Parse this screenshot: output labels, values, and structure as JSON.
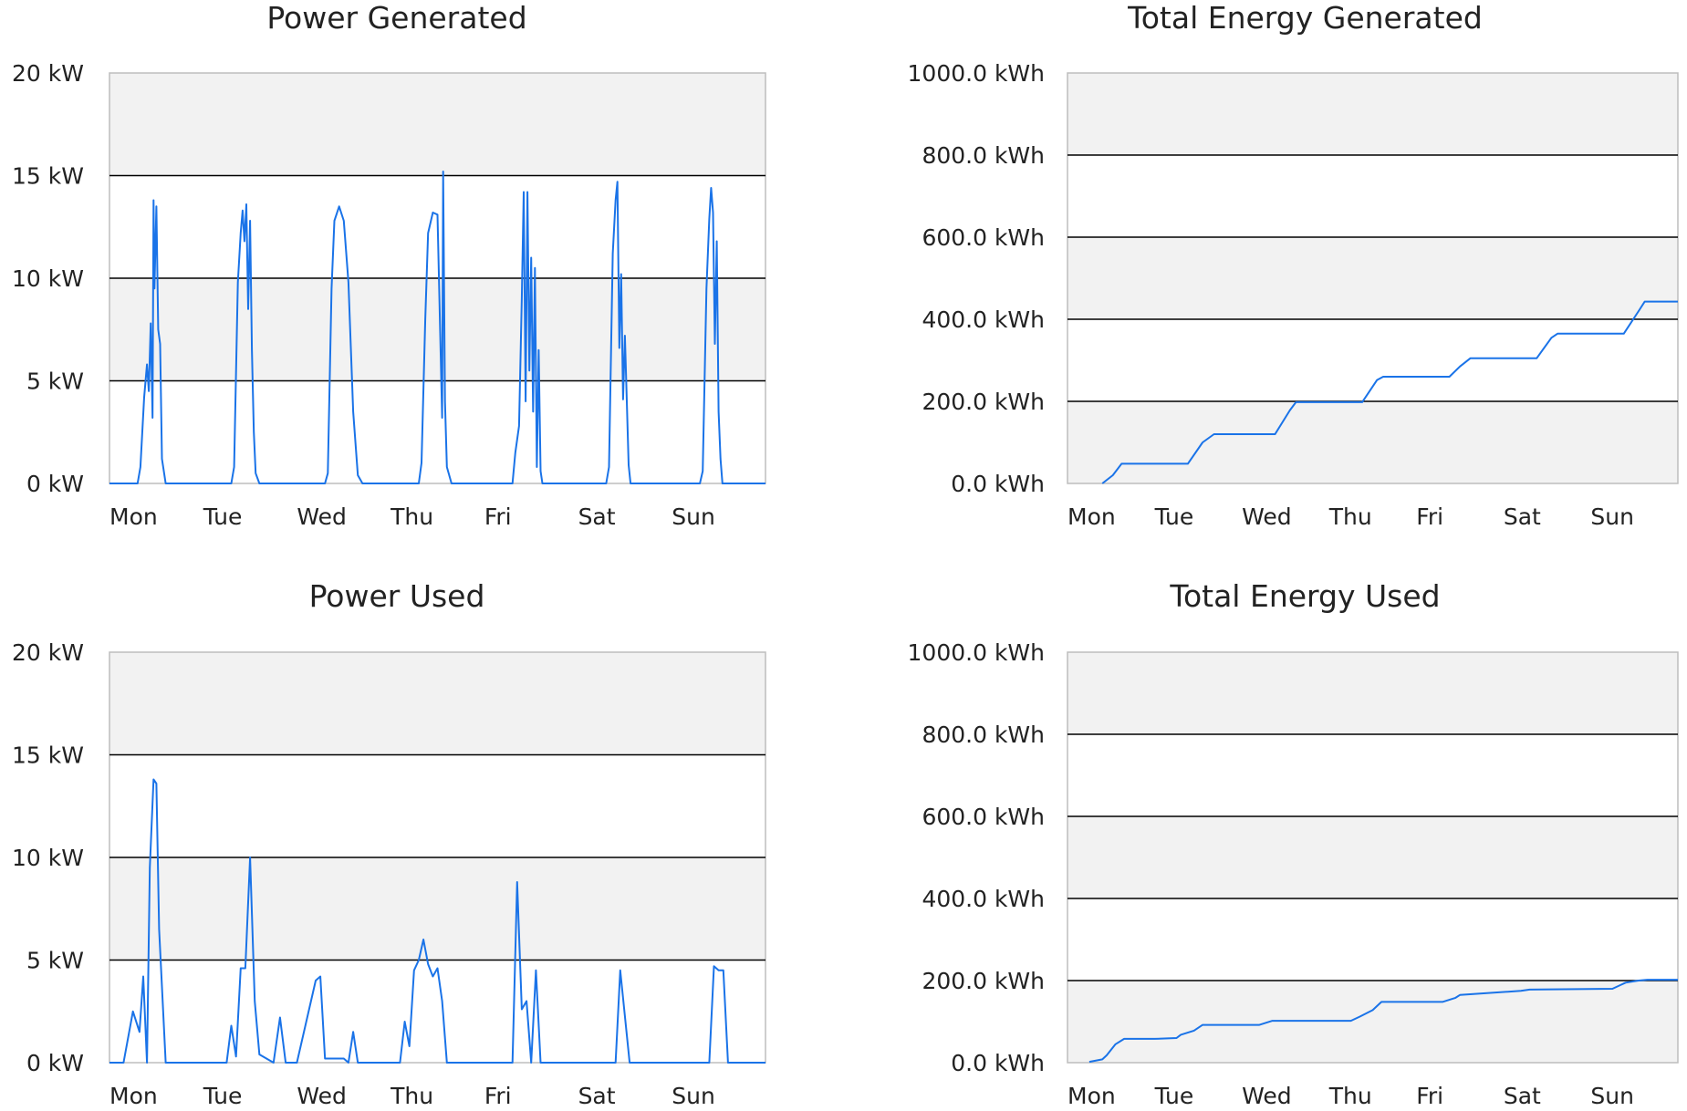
{
  "colors": {
    "line": "#1a73e8",
    "band": "#f2f2f2",
    "grid": "#000000",
    "frame": "#bdbdbd"
  },
  "chart_data": [
    {
      "type": "line",
      "title": "Power Generated",
      "xlabel": "",
      "ylabel": "",
      "ylim": [
        0,
        20
      ],
      "xlim": [
        0,
        7
      ],
      "x_ticks": [
        "Mon",
        "Tue",
        "Wed",
        "Thu",
        "Fri",
        "Sat",
        "Sun"
      ],
      "y_ticks": [
        "0 kW",
        "5 kW",
        "10 kW",
        "15 kW",
        "20 kW"
      ],
      "y_tick_values": [
        0,
        5,
        10,
        15,
        20
      ],
      "grid": true,
      "series": [
        {
          "x": [
            0,
            0.3,
            0.33,
            0.37,
            0.4,
            0.42,
            0.44,
            0.46,
            0.47,
            0.48,
            0.5,
            0.52,
            0.54,
            0.56,
            0.6,
            0.64,
            0.68,
            1.0,
            1.3,
            1.33,
            1.37,
            1.4,
            1.42,
            1.44,
            1.46,
            1.48,
            1.5,
            1.52,
            1.54,
            1.56,
            1.6,
            1.65,
            1.7,
            2.0,
            2.3,
            2.33,
            2.37,
            2.4,
            2.45,
            2.5,
            2.55,
            2.6,
            2.65,
            2.7,
            2.72,
            3.0,
            3.3,
            3.33,
            3.37,
            3.4,
            3.45,
            3.5,
            3.55,
            3.56,
            3.58,
            3.6,
            3.65,
            3.7,
            4.0,
            4.3,
            4.33,
            4.37,
            4.4,
            4.42,
            4.44,
            4.46,
            4.48,
            4.5,
            4.52,
            4.54,
            4.56,
            4.58,
            4.6,
            4.62,
            4.65,
            4.7,
            5.0,
            5.3,
            5.33,
            5.37,
            5.4,
            5.42,
            5.44,
            5.46,
            5.48,
            5.5,
            5.52,
            5.54,
            5.56,
            5.6,
            5.65,
            5.7,
            6.0,
            6.3,
            6.33,
            6.37,
            6.4,
            6.42,
            6.44,
            6.46,
            6.48,
            6.5,
            6.52,
            6.54,
            6.56,
            6.6,
            6.65,
            6.7,
            7.0
          ],
          "y": [
            0,
            0,
            0.8,
            4.2,
            5.8,
            4.5,
            7.8,
            3.2,
            13.8,
            9.5,
            13.5,
            7.5,
            6.8,
            1.2,
            0,
            0,
            0,
            0,
            0,
            0.8,
            9.8,
            12.2,
            13.3,
            11.8,
            13.6,
            8.5,
            12.8,
            6.5,
            2.5,
            0.5,
            0,
            0,
            0,
            0,
            0,
            0.5,
            9.5,
            12.8,
            13.5,
            12.8,
            9.8,
            3.5,
            0.4,
            0,
            0,
            0,
            0,
            1.0,
            8.0,
            12.2,
            13.2,
            13.1,
            3.2,
            15.2,
            4.0,
            0.8,
            0,
            0,
            0,
            0,
            1.5,
            2.8,
            9.0,
            14.2,
            4.0,
            14.2,
            5.5,
            11.0,
            3.5,
            10.5,
            0.8,
            6.5,
            0.6,
            0,
            0,
            0,
            0,
            0,
            0.8,
            11.2,
            13.8,
            14.7,
            6.6,
            10.2,
            4.1,
            7.2,
            4.0,
            0.9,
            0,
            0,
            0,
            0,
            0,
            0,
            0.6,
            9.5,
            12.9,
            14.4,
            13.2,
            6.8,
            11.8,
            3.5,
            1.2,
            0,
            0,
            0,
            0,
            0,
            0
          ]
        }
      ]
    },
    {
      "type": "line",
      "title": "Total Energy Generated",
      "xlabel": "",
      "ylabel": "",
      "ylim": [
        0,
        1000
      ],
      "xlim": [
        0,
        7
      ],
      "x_ticks": [
        "Mon",
        "Tue",
        "Wed",
        "Thu",
        "Fri",
        "Sat",
        "Sun"
      ],
      "y_ticks": [
        "0.0 kWh",
        "200.0 kWh",
        "400.0 kWh",
        "600.0 kWh",
        "800.0 kWh",
        "1000.0 kWh"
      ],
      "y_tick_values": [
        0,
        200,
        400,
        600,
        800,
        1000
      ],
      "grid": true,
      "series": [
        {
          "x": [
            0.4,
            0.52,
            0.62,
            1.38,
            1.55,
            1.68,
            2.38,
            2.55,
            2.62,
            3.38,
            3.55,
            3.62,
            4.38,
            4.5,
            4.62,
            5.38,
            5.55,
            5.62,
            6.38,
            6.55,
            6.62,
            7.0
          ],
          "y": [
            0,
            20,
            48,
            48,
            100,
            120,
            120,
            178,
            198,
            198,
            252,
            260,
            260,
            285,
            305,
            305,
            355,
            365,
            365,
            420,
            443,
            443
          ]
        }
      ]
    },
    {
      "type": "line",
      "title": "Power Used",
      "xlabel": "",
      "ylabel": "",
      "ylim": [
        0,
        20
      ],
      "xlim": [
        0,
        7
      ],
      "x_ticks": [
        "Mon",
        "Tue",
        "Wed",
        "Thu",
        "Fri",
        "Sat",
        "Sun"
      ],
      "y_ticks": [
        "0 kW",
        "5 kW",
        "10 kW",
        "15 kW",
        "20 kW"
      ],
      "y_tick_values": [
        0,
        5,
        10,
        15,
        20
      ],
      "grid": true,
      "series": [
        {
          "x": [
            0,
            0.15,
            0.25,
            0.32,
            0.36,
            0.4,
            0.43,
            0.47,
            0.5,
            0.53,
            0.6,
            0.65,
            1.0,
            1.25,
            1.3,
            1.35,
            1.4,
            1.45,
            1.5,
            1.55,
            1.6,
            1.75,
            1.82,
            1.88,
            1.95,
            2.0,
            2.2,
            2.25,
            2.3,
            2.5,
            2.55,
            2.6,
            2.65,
            2.7,
            2.75,
            2.8,
            3.0,
            3.05,
            3.1,
            3.15,
            3.2,
            3.25,
            3.3,
            3.35,
            3.4,
            3.45,
            3.5,
            3.55,
            3.6,
            3.65,
            3.7,
            3.75,
            3.8,
            4.0,
            4.3,
            4.35,
            4.4,
            4.45,
            4.5,
            4.55,
            4.6,
            4.62,
            4.65,
            5.0,
            5.2,
            5.25,
            5.35,
            5.4,
            5.45,
            5.55,
            5.6,
            6.0,
            6.2,
            6.25,
            6.35,
            6.4,
            6.45,
            6.5,
            6.55,
            6.6,
            6.65,
            7.0
          ],
          "y": [
            0,
            0,
            2.5,
            1.5,
            4.2,
            0,
            9.5,
            13.8,
            13.6,
            6.5,
            0,
            0,
            0,
            0,
            1.8,
            0.3,
            4.6,
            4.6,
            10.0,
            3.0,
            0.4,
            0,
            2.2,
            0,
            0,
            0,
            4.0,
            4.2,
            0.2,
            0.2,
            0,
            1.5,
            0,
            0,
            0,
            0,
            0,
            0,
            0,
            2.0,
            0.8,
            4.5,
            5.0,
            6.0,
            4.8,
            4.2,
            4.6,
            3.0,
            0,
            0,
            0,
            0,
            0,
            0,
            0,
            8.8,
            2.6,
            3.0,
            0,
            4.5,
            0,
            0,
            0,
            0,
            0,
            0,
            0,
            0,
            4.5,
            0,
            0,
            0,
            0,
            0,
            0,
            0,
            4.7,
            4.5,
            4.5,
            0,
            0,
            0
          ]
        }
      ]
    },
    {
      "type": "line",
      "title": "Total Energy Used",
      "xlabel": "",
      "ylabel": "",
      "ylim": [
        0,
        1000
      ],
      "xlim": [
        0,
        7
      ],
      "x_ticks": [
        "Mon",
        "Tue",
        "Wed",
        "Thu",
        "Fri",
        "Sat",
        "Sun"
      ],
      "y_ticks": [
        "0.0 kWh",
        "200.0 kWh",
        "400.0 kWh",
        "600.0 kWh",
        "800.0 kWh",
        "1000.0 kWh"
      ],
      "y_tick_values": [
        0,
        200,
        400,
        600,
        800,
        1000
      ],
      "grid": true,
      "series": [
        {
          "x": [
            0.25,
            0.4,
            0.45,
            0.55,
            0.65,
            1.0,
            1.25,
            1.3,
            1.45,
            1.55,
            2.2,
            2.35,
            3.25,
            3.35,
            3.5,
            3.6,
            4.3,
            4.45,
            4.5,
            5.2,
            5.3,
            6.25,
            6.4,
            6.55,
            6.65,
            7.0
          ],
          "y": [
            2,
            8,
            18,
            45,
            58,
            58,
            60,
            68,
            78,
            92,
            92,
            102,
            102,
            112,
            128,
            148,
            148,
            158,
            165,
            175,
            178,
            180,
            195,
            200,
            202,
            202
          ]
        }
      ]
    }
  ]
}
